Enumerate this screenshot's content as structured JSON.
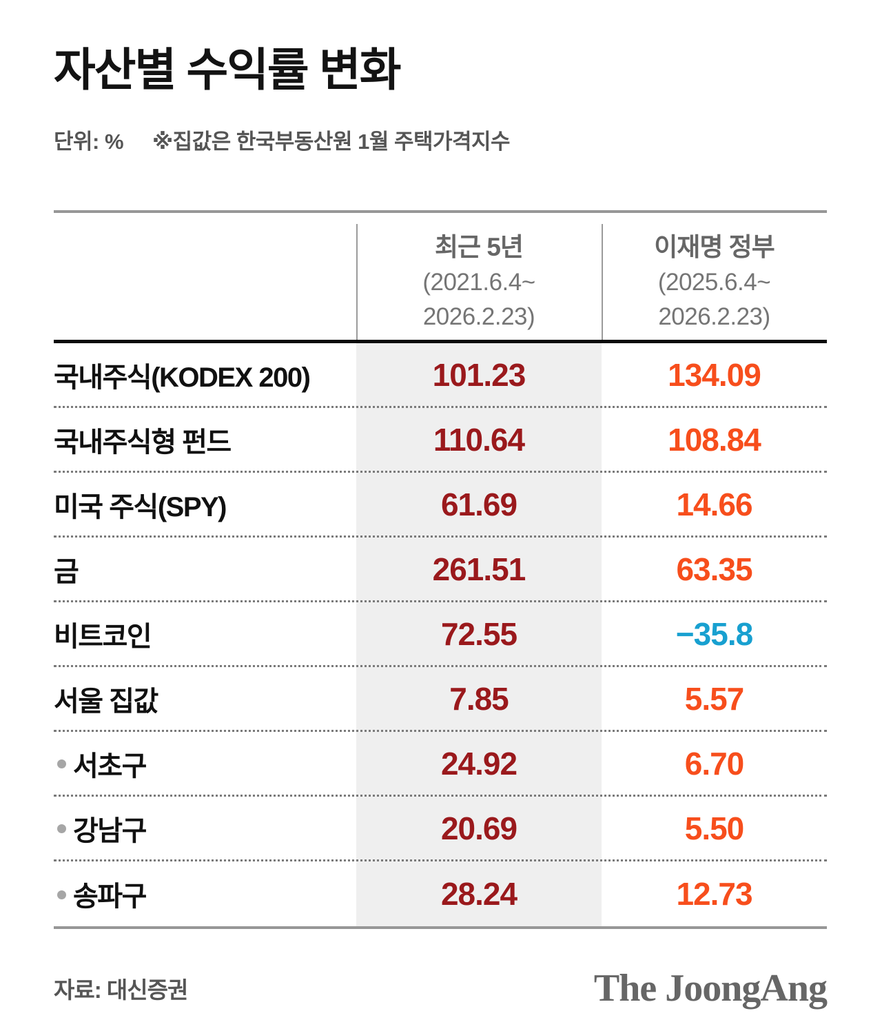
{
  "header": {
    "title": "자산별 수익률 변화",
    "unit_label": "단위: %",
    "note": "※집값은 한국부동산원 1월 주택가격지수"
  },
  "table": {
    "columns": [
      {
        "title": "최근 5년",
        "period_line1": "(2021.6.4~",
        "period_line2": "2026.2.23)"
      },
      {
        "title": "이재명 정부",
        "period_line1": "(2025.6.4~",
        "period_line2": "2026.2.23)"
      }
    ],
    "rows": [
      {
        "label": "국내주식(KODEX 200)",
        "bullet": false,
        "recent5y": "101.23",
        "gov": "134.09",
        "gov_negative": false
      },
      {
        "label": "국내주식형 펀드",
        "bullet": false,
        "recent5y": "110.64",
        "gov": "108.84",
        "gov_negative": false
      },
      {
        "label": "미국 주식(SPY)",
        "bullet": false,
        "recent5y": "61.69",
        "gov": "14.66",
        "gov_negative": false
      },
      {
        "label": "금",
        "bullet": false,
        "recent5y": "261.51",
        "gov": "63.35",
        "gov_negative": false
      },
      {
        "label": "비트코인",
        "bullet": false,
        "recent5y": "72.55",
        "gov": "−35.8",
        "gov_negative": true
      },
      {
        "label": "서울 집값",
        "bullet": false,
        "recent5y": "7.85",
        "gov": "5.57",
        "gov_negative": false
      },
      {
        "label": "서초구",
        "bullet": true,
        "recent5y": "24.92",
        "gov": "6.70",
        "gov_negative": false
      },
      {
        "label": "강남구",
        "bullet": true,
        "recent5y": "20.69",
        "gov": "5.50",
        "gov_negative": false
      },
      {
        "label": "송파구",
        "bullet": true,
        "recent5y": "28.24",
        "gov": "12.73",
        "gov_negative": false
      }
    ]
  },
  "footer": {
    "source": "자료: 대신증권",
    "logo": "The JoongAng"
  },
  "colors": {
    "recent_value": "#9A191C",
    "gov_positive": "#F74E1C",
    "gov_negative": "#18A0D0",
    "band": "#EFEFEF",
    "rule_gray": "#979797",
    "rule_black": "#0A0A0A"
  },
  "chart_data": {
    "type": "table",
    "title": "자산별 수익률 변화",
    "unit": "%",
    "note": "집값은 한국부동산원 1월 주택가격지수",
    "columns": [
      "최근 5년 (2021.6.4~2026.2.23)",
      "이재명 정부 (2025.6.4~2026.2.23)"
    ],
    "categories": [
      "국내주식(KODEX 200)",
      "국내주식형 펀드",
      "미국 주식(SPY)",
      "금",
      "비트코인",
      "서울 집값",
      "서초구",
      "강남구",
      "송파구"
    ],
    "series": [
      {
        "name": "최근 5년 (2021.6.4~2026.2.23)",
        "values": [
          101.23,
          110.64,
          61.69,
          261.51,
          72.55,
          7.85,
          24.92,
          20.69,
          28.24
        ]
      },
      {
        "name": "이재명 정부 (2025.6.4~2026.2.23)",
        "values": [
          134.09,
          108.84,
          14.66,
          63.35,
          -35.8,
          5.57,
          6.7,
          5.5,
          12.73
        ]
      }
    ],
    "source": "대신증권"
  }
}
